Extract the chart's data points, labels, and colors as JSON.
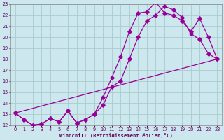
{
  "xlabel": "Windchill (Refroidissement éolien,°C)",
  "bg_color": "#cce8ee",
  "grid_color": "#aacccc",
  "line_color": "#990099",
  "xlim": [
    -0.5,
    23.5
  ],
  "ylim": [
    12,
    23
  ],
  "yticks": [
    12,
    13,
    14,
    15,
    16,
    17,
    18,
    19,
    20,
    21,
    22,
    23
  ],
  "xticks": [
    0,
    1,
    2,
    3,
    4,
    5,
    6,
    7,
    8,
    9,
    10,
    11,
    12,
    13,
    14,
    15,
    16,
    17,
    18,
    19,
    20,
    21,
    22,
    23
  ],
  "line1_x": [
    0,
    1,
    2,
    3,
    4,
    5,
    6,
    7,
    8,
    9,
    10,
    11,
    12,
    13,
    14,
    15,
    16,
    17,
    18,
    19,
    20,
    21,
    22,
    23
  ],
  "line1_y": [
    13.1,
    12.5,
    12.0,
    12.1,
    12.6,
    12.3,
    13.3,
    12.2,
    12.5,
    13.0,
    13.8,
    15.5,
    16.0,
    18.0,
    20.0,
    21.5,
    22.0,
    22.8,
    22.5,
    21.8,
    20.3,
    19.8,
    18.5,
    18.0
  ],
  "line2_x": [
    0,
    1,
    2,
    3,
    4,
    5,
    6,
    7,
    8,
    9,
    10,
    11,
    12,
    13,
    14,
    15,
    16,
    17,
    18,
    19,
    20,
    21,
    22,
    23
  ],
  "line2_y": [
    13.1,
    12.5,
    12.0,
    12.1,
    12.6,
    12.3,
    13.3,
    12.2,
    12.5,
    13.0,
    14.5,
    16.3,
    18.2,
    20.5,
    22.2,
    22.3,
    23.2,
    22.2,
    22.0,
    21.5,
    20.5,
    21.7,
    20.0,
    18.0
  ],
  "line3_x": [
    0,
    23
  ],
  "line3_y": [
    13.1,
    18.0
  ]
}
